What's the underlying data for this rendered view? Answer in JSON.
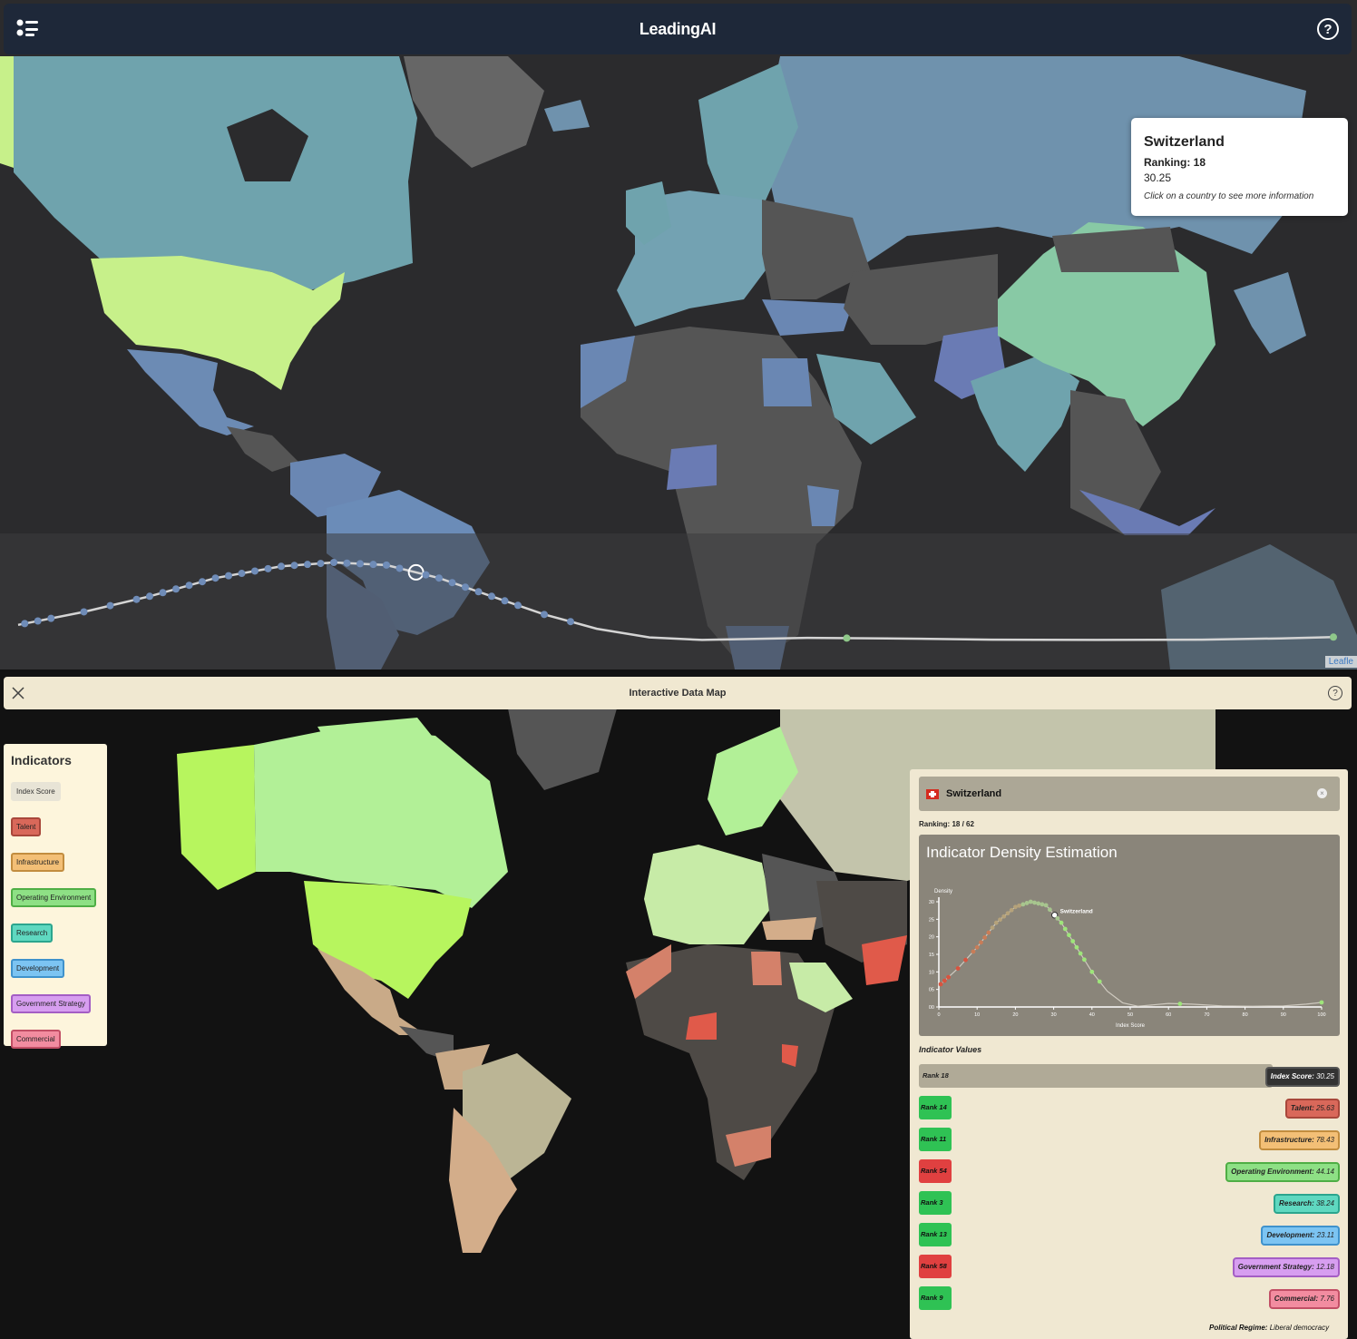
{
  "top": {
    "title": "LeadingAI",
    "tooltip": {
      "country": "Switzerland",
      "ranking": "Ranking: 18",
      "score": "30.25",
      "hint": "Click on a country to see more information"
    },
    "attribution": "Leafle"
  },
  "bottom": {
    "title": "Interactive Data Map",
    "indicators": {
      "heading": "Indicators",
      "items": [
        {
          "label": "Index Score",
          "bg": "#e8e4d6",
          "border": "#e8e4d6",
          "color": "#333"
        },
        {
          "label": "Talent",
          "bg": "#d9685a",
          "border": "#a8473b",
          "color": "#222"
        },
        {
          "label": "Infrastructure",
          "bg": "#f3bf76",
          "border": "#c28d3f",
          "color": "#222"
        },
        {
          "label": "Operating Environment",
          "bg": "#8ee085",
          "border": "#4fae45",
          "color": "#222"
        },
        {
          "label": "Research",
          "bg": "#5fd8c0",
          "border": "#2ba58e",
          "color": "#222"
        },
        {
          "label": "Development",
          "bg": "#7cc4f2",
          "border": "#3f92cc",
          "color": "#222"
        },
        {
          "label": "Government Strategy",
          "bg": "#d79ef0",
          "border": "#a45ec4",
          "color": "#222"
        },
        {
          "label": "Commercial",
          "bg": "#f28ca0",
          "border": "#c24f66",
          "color": "#222"
        }
      ]
    },
    "detail": {
      "country": "Switzerland",
      "ranking": "Ranking: 18 / 62",
      "chart_title": "Indicator Density Estimation",
      "indicator_values_title": "Indicator Values",
      "index_row": {
        "rank": "Rank 18",
        "label": "Index Score:",
        "value": "30.25"
      },
      "rows": [
        {
          "rank": "Rank 14",
          "rank_color": "#2fc254",
          "label": "Talent:",
          "value": "25.63",
          "bg": "#d9685a",
          "border": "#a8473b"
        },
        {
          "rank": "Rank 11",
          "rank_color": "#2fc254",
          "label": "Infrastructure:",
          "value": "78.43",
          "bg": "#f3bf76",
          "border": "#c28d3f"
        },
        {
          "rank": "Rank 54",
          "rank_color": "#e04040",
          "label": "Operating Environment:",
          "value": "44.14",
          "bg": "#8ee085",
          "border": "#4fae45"
        },
        {
          "rank": "Rank 3",
          "rank_color": "#2fc254",
          "label": "Research:",
          "value": "38.24",
          "bg": "#5fd8c0",
          "border": "#2ba58e"
        },
        {
          "rank": "Rank 13",
          "rank_color": "#2fc254",
          "label": "Development:",
          "value": "23.11",
          "bg": "#7cc4f2",
          "border": "#3f92cc"
        },
        {
          "rank": "Rank 58",
          "rank_color": "#e04040",
          "label": "Government Strategy:",
          "value": "12.18",
          "bg": "#d79ef0",
          "border": "#a45ec4"
        },
        {
          "rank": "Rank 9",
          "rank_color": "#2fc254",
          "label": "Commercial:",
          "value": "7.76",
          "bg": "#f28ca0",
          "border": "#c24f66"
        }
      ],
      "political_label": "Political Regime:",
      "political_value": "Liberal democracy"
    }
  },
  "chart_data": {
    "type": "line",
    "title": "Indicator Density Estimation",
    "xlabel": "Index Score",
    "ylabel": "Density",
    "x_ticks": [
      0,
      10,
      20,
      30,
      40,
      50,
      60,
      70,
      80,
      90,
      100
    ],
    "y_ticks": [
      "00",
      "05",
      "10",
      "15",
      "20",
      "25",
      "30"
    ],
    "ylim": [
      0,
      30
    ],
    "xlim": [
      0,
      100
    ],
    "highlight": {
      "label": "Switzerland",
      "x": 30.25
    },
    "curve": [
      [
        0,
        6
      ],
      [
        5,
        11
      ],
      [
        10,
        17
      ],
      [
        15,
        24
      ],
      [
        20,
        28.5
      ],
      [
        24,
        30
      ],
      [
        28,
        29
      ],
      [
        32,
        24
      ],
      [
        36,
        17
      ],
      [
        40,
        10
      ],
      [
        44,
        4.5
      ],
      [
        48,
        1.2
      ],
      [
        52,
        0.2
      ],
      [
        56,
        0.6
      ],
      [
        60,
        1
      ],
      [
        66,
        0.8
      ],
      [
        74,
        0.3
      ],
      [
        82,
        0.2
      ],
      [
        90,
        0.3
      ],
      [
        96,
        0.8
      ],
      [
        100,
        1.3
      ]
    ],
    "points": [
      0.5,
      1.5,
      2.5,
      5,
      7,
      9,
      10,
      11,
      12,
      13,
      14,
      15,
      16,
      17,
      18,
      19,
      20,
      21,
      22,
      23,
      24,
      25,
      26,
      27,
      28,
      29,
      30.25,
      31,
      32,
      33,
      34,
      35,
      36,
      37,
      38,
      40,
      42,
      63,
      100
    ]
  }
}
